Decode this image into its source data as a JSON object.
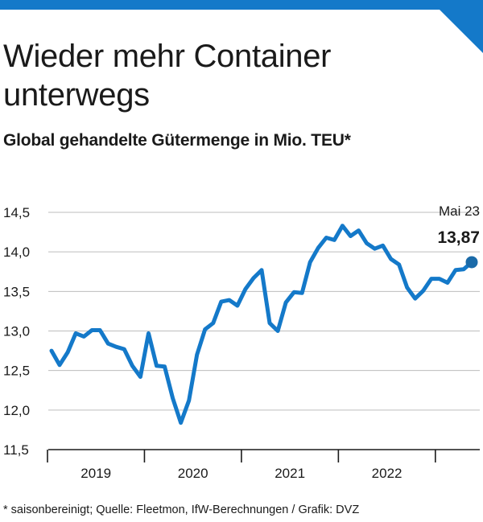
{
  "header": {
    "title": "Wieder mehr Container unterwegs",
    "subtitle": "Global gehandelte Gütermenge in Mio. TEU*"
  },
  "footnote": "* saisonbereinigt; Quelle: Fleetmon, IfW-Berechnungen / Grafik: DVZ",
  "colors": {
    "accent": "#1479c9",
    "line": "#1479c9",
    "marker": "#1a6aa8",
    "grid": "#bdbdbd"
  },
  "chart_data": {
    "type": "line",
    "title": "Global gehandelte Gütermenge in Mio. TEU*",
    "xlabel": "",
    "ylabel": "",
    "ylim": [
      11.5,
      14.5
    ],
    "yticks": [
      "11,5",
      "12,0",
      "12,5",
      "13,0",
      "13,5",
      "14,0",
      "14,5"
    ],
    "ytick_values": [
      11.5,
      12.0,
      12.5,
      13.0,
      13.5,
      14.0,
      14.5
    ],
    "xtick_labels": [
      "2019",
      "2020",
      "2021",
      "2022"
    ],
    "grid": true,
    "annotation": {
      "label": "Mai 23",
      "value": "13,87"
    },
    "series": [
      {
        "values": [
          12.75,
          12.57,
          12.73,
          12.97,
          12.93,
          13.01,
          13.01,
          12.84,
          12.8,
          12.77,
          12.56,
          12.42,
          12.97,
          12.56,
          12.55,
          12.15,
          11.84,
          12.12,
          12.7,
          13.02,
          13.1,
          13.37,
          13.39,
          13.32,
          13.53,
          13.67,
          13.77,
          13.1,
          13.0,
          13.36,
          13.49,
          13.48,
          13.87,
          14.05,
          14.18,
          14.15,
          14.33,
          14.2,
          14.27,
          14.11,
          14.04,
          14.08,
          13.91,
          13.84,
          13.55,
          13.41,
          13.51,
          13.66,
          13.66,
          13.61,
          13.77,
          13.78,
          13.87
        ]
      }
    ]
  }
}
